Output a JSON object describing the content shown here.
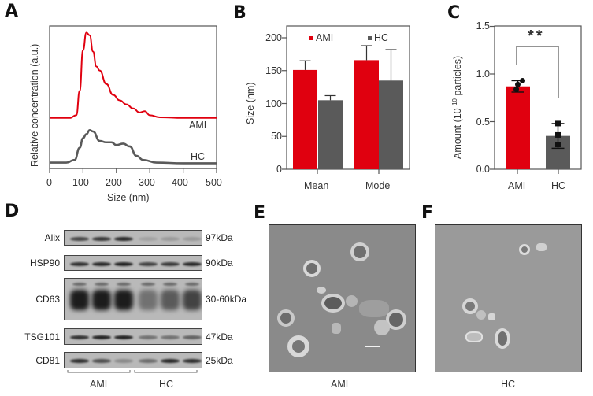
{
  "panels": {
    "A": "A",
    "B": "B",
    "C": "C",
    "D": "D",
    "E": "E",
    "F": "F"
  },
  "colors": {
    "ami": "#e0000f",
    "hc": "#5a5a5a",
    "axis": "#555555"
  },
  "chart_data": [
    {
      "panel": "A",
      "type": "line",
      "title": "",
      "xlabel": "Size (nm)",
      "ylabel": "Relative concentration (a.u.)",
      "xlim": [
        0,
        500
      ],
      "xticks": [
        "0",
        "100",
        "200",
        "300",
        "400",
        "500"
      ],
      "grid": false,
      "series": [
        {
          "name": "AMI",
          "color": "#e0000f",
          "x": [
            0,
            60,
            80,
            90,
            100,
            110,
            120,
            130,
            140,
            150,
            170,
            190,
            210,
            230,
            250,
            270,
            285,
            300,
            330,
            400,
            500
          ],
          "y": [
            0.35,
            0.35,
            0.37,
            0.55,
            0.85,
            0.98,
            0.96,
            0.84,
            0.73,
            0.7,
            0.6,
            0.52,
            0.48,
            0.45,
            0.42,
            0.39,
            0.4,
            0.37,
            0.355,
            0.35,
            0.35
          ]
        },
        {
          "name": "HC",
          "color": "#5a5a5a",
          "x": [
            0,
            50,
            75,
            90,
            100,
            110,
            120,
            130,
            150,
            170,
            185,
            200,
            220,
            240,
            260,
            280,
            320,
            400,
            500
          ],
          "y": [
            0.02,
            0.02,
            0.04,
            0.13,
            0.2,
            0.23,
            0.26,
            0.25,
            0.18,
            0.17,
            0.17,
            0.15,
            0.16,
            0.14,
            0.07,
            0.04,
            0.02,
            0.015,
            0.015
          ]
        }
      ],
      "annotations": [
        "AMI",
        "HC"
      ]
    },
    {
      "panel": "B",
      "type": "bar",
      "title": "",
      "xlabel": "",
      "ylabel": "Size (nm)",
      "ylim": [
        0,
        200
      ],
      "yticks": [
        "0",
        "50",
        "100",
        "150",
        "200"
      ],
      "categories": [
        "Mean",
        "Mode"
      ],
      "series": [
        {
          "name": "AMI",
          "color": "#e0000f",
          "values": [
            151,
            166
          ],
          "errors": [
            14,
            22
          ]
        },
        {
          "name": "HC",
          "color": "#5a5a5a",
          "values": [
            105,
            135
          ],
          "errors": [
            7,
            47
          ]
        }
      ],
      "legend": {
        "position": "top",
        "entries": [
          "AMI",
          "HC"
        ]
      },
      "grid": false
    },
    {
      "panel": "C",
      "type": "bar",
      "title": "",
      "xlabel": "",
      "ylabel": "Amount (10 10 particles)",
      "ylabel_parts": {
        "prefix": "Amount (10 ",
        "sup": "10",
        "suffix": " particles)"
      },
      "ylim": [
        0,
        1.5
      ],
      "yticks": [
        "0.0",
        "0.5",
        "1.0",
        "1.5"
      ],
      "categories": [
        "AMI",
        "HC"
      ],
      "values": [
        0.87,
        0.35
      ],
      "errors": [
        0.06,
        0.13
      ],
      "colors": [
        "#e0000f",
        "#5a5a5a"
      ],
      "points": [
        [
          0.84,
          0.89,
          0.93
        ],
        [
          0.26,
          0.36,
          0.48
        ]
      ],
      "significance": {
        "label": "**",
        "between": [
          "AMI",
          "HC"
        ]
      },
      "grid": false
    }
  ],
  "western_blot": {
    "rows": [
      {
        "protein": "Alix",
        "kda": "97kDa",
        "intensity": [
          0.75,
          0.85,
          0.95,
          0.15,
          0.2,
          0.2
        ]
      },
      {
        "protein": "HSP90",
        "kda": "90kDa",
        "intensity": [
          0.85,
          0.9,
          0.95,
          0.75,
          0.8,
          0.9
        ]
      },
      {
        "protein": "CD63",
        "kda": "30-60kDa",
        "intensity": [
          1.0,
          1.0,
          1.0,
          0.45,
          0.6,
          0.75
        ]
      },
      {
        "protein": "TSG101",
        "kda": "47kDa",
        "intensity": [
          0.85,
          0.95,
          0.95,
          0.45,
          0.45,
          0.55
        ]
      },
      {
        "protein": "CD81",
        "kda": "25kDa",
        "intensity": [
          0.9,
          0.7,
          0.3,
          0.5,
          0.95,
          0.9
        ]
      }
    ],
    "groups": [
      "AMI",
      "HC"
    ]
  },
  "tem": {
    "E": {
      "caption": "AMI"
    },
    "F": {
      "caption": "HC"
    }
  }
}
